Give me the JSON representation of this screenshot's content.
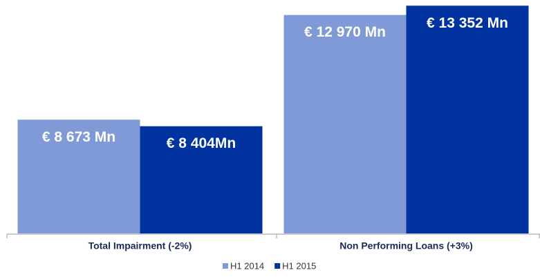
{
  "chart_data": {
    "type": "bar",
    "categories": [
      "Total Impairment (-2%)",
      "Non Performing Loans (+3%)"
    ],
    "series": [
      {
        "name": "H1 2014",
        "color": "#7f9ad6",
        "values": [
          8673,
          12970
        ],
        "value_labels": [
          "€ 8 673 Mn",
          "€ 12 970 Mn"
        ]
      },
      {
        "name": "H1 2015",
        "color": "#0033a0",
        "values": [
          8404,
          13352
        ],
        "value_labels": [
          "€ 8 404Mn",
          "€ 13 352 Mn"
        ]
      }
    ],
    "ylim": [
      4000,
      13500
    ]
  }
}
